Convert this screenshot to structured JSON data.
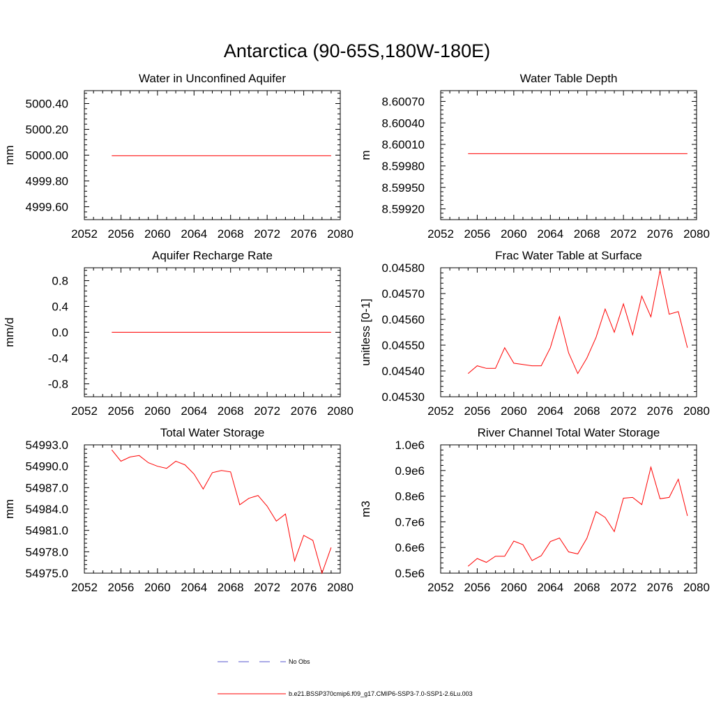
{
  "main_title": "Antarctica (90-65S,180W-180E)",
  "legend": {
    "items": [
      {
        "label": "No Obs",
        "color": "#5555cc",
        "style": "dashed"
      },
      {
        "label": "b.e21.BSSP370cmip6.f09_g17.CMIP6-SSP3-7.0-SSP1-2.6Lu.003",
        "color": "#ff0000",
        "style": "solid"
      }
    ]
  },
  "chart_data": [
    {
      "id": "aquifer-water",
      "type": "line",
      "title": "Water in Unconfined Aquifer",
      "ylabel": "mm",
      "xlim": [
        2052,
        2080
      ],
      "ylim": [
        4999.5,
        5000.5
      ],
      "xticks": [
        "2052",
        "2056",
        "2060",
        "2064",
        "2068",
        "2072",
        "2076",
        "2080"
      ],
      "yticks": [
        "4999.60",
        "4999.80",
        "5000.00",
        "5000.20",
        "5000.40"
      ],
      "series": [
        {
          "color": "#ff0000",
          "x": [
            2055,
            2079
          ],
          "y": [
            4999.995,
            4999.995
          ]
        }
      ]
    },
    {
      "id": "water-table-depth",
      "type": "line",
      "title": "Water Table Depth",
      "ylabel": "m",
      "xlim": [
        2052,
        2080
      ],
      "ylim": [
        8.59905,
        8.60085
      ],
      "xticks": [
        "2052",
        "2056",
        "2060",
        "2064",
        "2068",
        "2072",
        "2076",
        "2080"
      ],
      "yticks": [
        "8.59920",
        "8.59950",
        "8.59980",
        "8.60010",
        "8.60040",
        "8.60070"
      ],
      "series": [
        {
          "color": "#ff0000",
          "x": [
            2055,
            2079
          ],
          "y": [
            8.59997,
            8.59997
          ]
        }
      ]
    },
    {
      "id": "recharge-rate",
      "type": "line",
      "title": "Aquifer Recharge Rate",
      "ylabel": "mm/d",
      "xlim": [
        2052,
        2080
      ],
      "ylim": [
        -1.0,
        1.0
      ],
      "xticks": [
        "2052",
        "2056",
        "2060",
        "2064",
        "2068",
        "2072",
        "2076",
        "2080"
      ],
      "yticks": [
        "-0.8",
        "-0.4",
        "0.0",
        "0.4",
        "0.8"
      ],
      "series": [
        {
          "color": "#ff0000",
          "x": [
            2055,
            2079
          ],
          "y": [
            0.0,
            0.0
          ]
        }
      ]
    },
    {
      "id": "frac-water-table",
      "type": "line",
      "title": "Frac Water Table at Surface",
      "ylabel": "unitless [0-1]",
      "xlim": [
        2052,
        2080
      ],
      "ylim": [
        0.0453,
        0.0458
      ],
      "xticks": [
        "2052",
        "2056",
        "2060",
        "2064",
        "2068",
        "2072",
        "2076",
        "2080"
      ],
      "yticks": [
        "0.04530",
        "0.04540",
        "0.04550",
        "0.04560",
        "0.04570",
        "0.04580"
      ],
      "series": [
        {
          "color": "#ff0000",
          "x": [
            2055,
            2056,
            2057,
            2058,
            2059,
            2060,
            2061,
            2062,
            2063,
            2064,
            2065,
            2066,
            2067,
            2068,
            2069,
            2070,
            2071,
            2072,
            2073,
            2074,
            2075,
            2076,
            2077,
            2078,
            2079
          ],
          "y": [
            0.04539,
            0.04542,
            0.04541,
            0.04541,
            0.04549,
            0.04543,
            0.045425,
            0.04542,
            0.04542,
            0.04549,
            0.04561,
            0.04547,
            0.04539,
            0.04545,
            0.04553,
            0.04564,
            0.04555,
            0.04566,
            0.04554,
            0.04569,
            0.04561,
            0.04579,
            0.04562,
            0.04563,
            0.04549
          ]
        }
      ]
    },
    {
      "id": "total-water-storage",
      "type": "line",
      "title": "Total Water Storage",
      "ylabel": "mm",
      "xlim": [
        2052,
        2080
      ],
      "ylim": [
        54975.0,
        54993.0
      ],
      "xticks": [
        "2052",
        "2056",
        "2060",
        "2064",
        "2068",
        "2072",
        "2076",
        "2080"
      ],
      "yticks": [
        "54975.0",
        "54978.0",
        "54981.0",
        "54984.0",
        "54987.0",
        "54990.0",
        "54993.0"
      ],
      "series": [
        {
          "color": "#ff0000",
          "x": [
            2055,
            2056,
            2057,
            2058,
            2059,
            2060,
            2061,
            2062,
            2063,
            2064,
            2065,
            2066,
            2067,
            2068,
            2069,
            2070,
            2071,
            2072,
            2073,
            2074,
            2075,
            2076,
            2077,
            2078,
            2079
          ],
          "y": [
            54992.3,
            54990.7,
            54991.3,
            54991.5,
            54990.5,
            54990.0,
            54989.7,
            54990.7,
            54990.2,
            54988.9,
            54986.8,
            54989.1,
            54989.4,
            54989.2,
            54984.6,
            54985.5,
            54985.9,
            54984.4,
            54982.3,
            54983.3,
            54976.7,
            54980.3,
            54979.6,
            54975.0,
            54978.6
          ]
        }
      ]
    },
    {
      "id": "river-channel-storage",
      "type": "line",
      "title": "River Channel Total Water Storage",
      "ylabel": "m3",
      "xlim": [
        2052,
        2080
      ],
      "ylim": [
        500000,
        1000000
      ],
      "xticks": [
        "2052",
        "2056",
        "2060",
        "2064",
        "2068",
        "2072",
        "2076",
        "2080"
      ],
      "yticks": [
        "0.5e6",
        "0.6e6",
        "0.7e6",
        "0.8e6",
        "0.9e6",
        "1.0e6"
      ],
      "series": [
        {
          "color": "#ff0000",
          "x": [
            2055,
            2056,
            2057,
            2058,
            2059,
            2060,
            2061,
            2062,
            2063,
            2064,
            2065,
            2066,
            2067,
            2068,
            2069,
            2070,
            2071,
            2072,
            2073,
            2074,
            2075,
            2076,
            2077,
            2078,
            2079
          ],
          "y": [
            527000,
            557000,
            542000,
            566000,
            566000,
            625000,
            611000,
            549000,
            568000,
            623000,
            637000,
            583000,
            575000,
            636000,
            740000,
            717000,
            662000,
            792000,
            795000,
            767000,
            913000,
            790000,
            795000,
            866000,
            723000
          ]
        }
      ]
    }
  ]
}
